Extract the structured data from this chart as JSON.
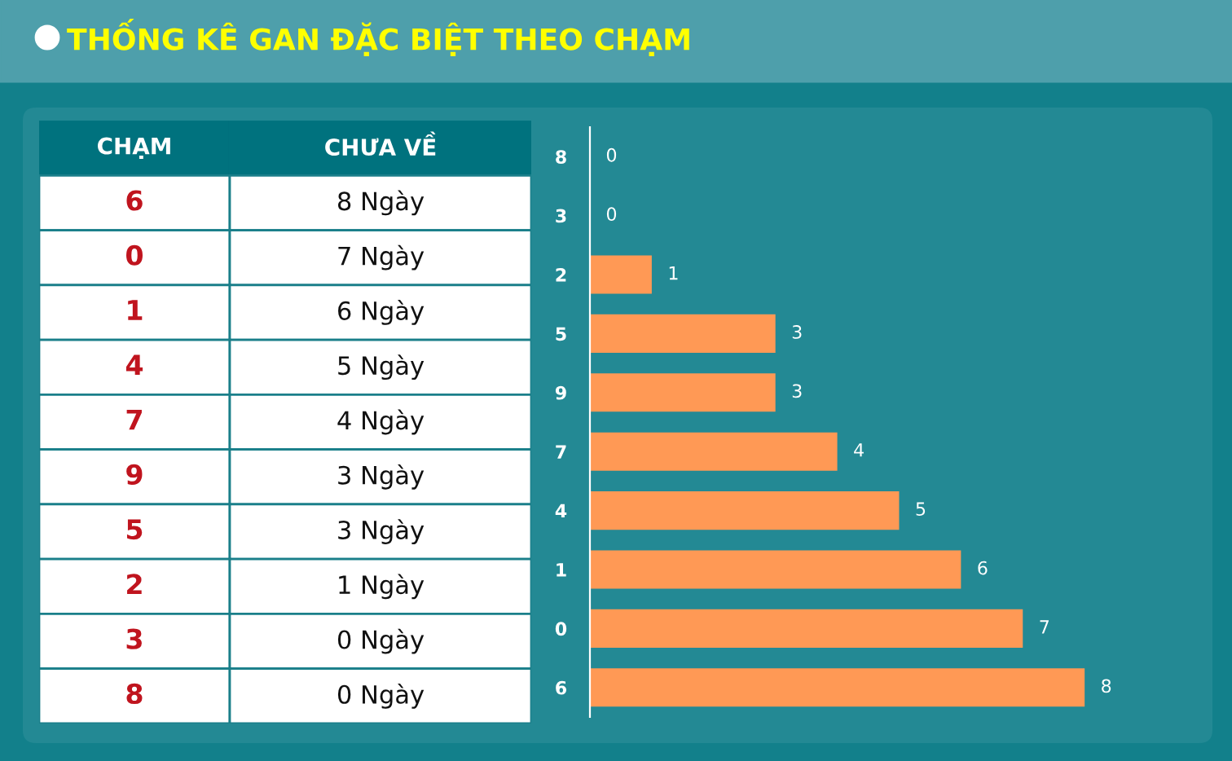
{
  "chart_data": [
    {
      "type": "other",
      "categories": [
        "CHẠM",
        "CHƯA VỀ"
      ],
      "cell_labels": [
        [
          "6",
          "8 Ngày"
        ],
        [
          "0",
          "7 Ngày"
        ],
        [
          "1",
          "6 Ngày"
        ],
        [
          "4",
          "5 Ngày"
        ],
        [
          "7",
          "4 Ngày"
        ],
        [
          "9",
          "3 Ngày"
        ],
        [
          "5",
          "3 Ngày"
        ],
        [
          "2",
          "1 Ngày"
        ],
        [
          "3",
          "0 Ngày"
        ],
        [
          "8",
          "0 Ngày"
        ]
      ]
    },
    {
      "type": "bar",
      "orientation": "horizontal",
      "title": "THỐNG KÊ GAN ĐẶC BIỆT THEO CHẠM",
      "categories": [
        "8",
        "3",
        "2",
        "5",
        "9",
        "7",
        "4",
        "1",
        "0",
        "6"
      ],
      "values": [
        0,
        0,
        1,
        3,
        3,
        4,
        5,
        6,
        7,
        8
      ],
      "color": "#ff9955",
      "data_labels": true,
      "grid": false,
      "legend": false
    }
  ]
}
